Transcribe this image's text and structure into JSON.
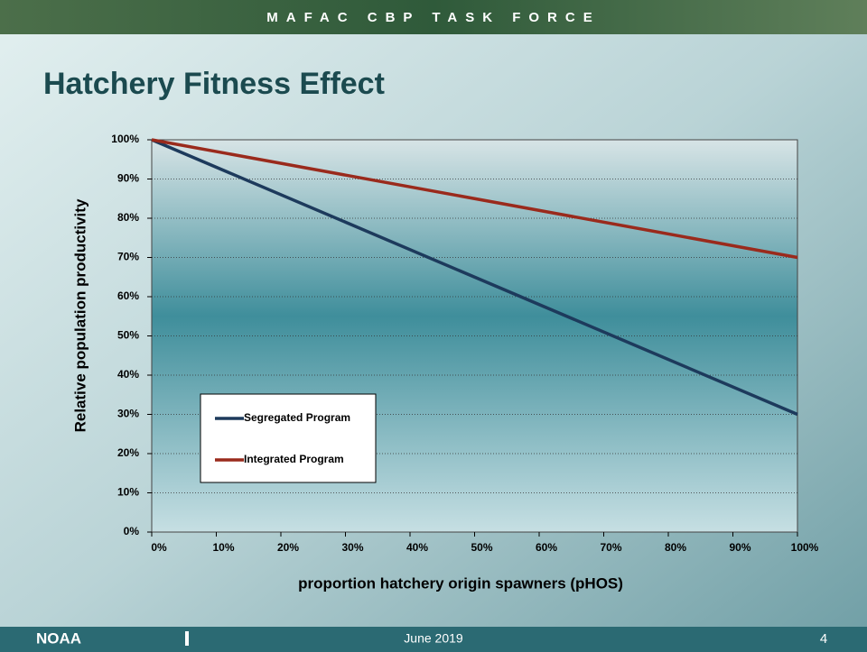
{
  "header": {
    "banner": "MAFAC CBP TASK FORCE",
    "title": "Hatchery Fitness Effect"
  },
  "footer": {
    "logo": "NOAA",
    "date": "June 2019",
    "page": "4"
  },
  "chart_data": {
    "type": "line",
    "x_label": "proportion hatchery origin spawners (pHOS)",
    "y_label": "Relative population productivity",
    "x": [
      0,
      100
    ],
    "series": [
      {
        "name": "Segregated Program",
        "color": "#1d3a5c",
        "values": [
          100,
          30
        ]
      },
      {
        "name": "Integrated Program",
        "color": "#9a2a1c",
        "values": [
          100,
          70
        ]
      }
    ],
    "xlim": [
      0,
      100
    ],
    "ylim": [
      0,
      100
    ],
    "xticks": [
      {
        "value": 0,
        "label": "0%"
      },
      {
        "value": 10,
        "label": "10%"
      },
      {
        "value": 20,
        "label": "20%"
      },
      {
        "value": 30,
        "label": "30%"
      },
      {
        "value": 40,
        "label": "40%"
      },
      {
        "value": 50,
        "label": "50%"
      },
      {
        "value": 60,
        "label": "60%"
      },
      {
        "value": 70,
        "label": "70%"
      },
      {
        "value": 80,
        "label": "80%"
      },
      {
        "value": 90,
        "label": "90%"
      },
      {
        "value": 100,
        "label": "100%"
      }
    ],
    "yticks": [
      {
        "value": 0,
        "label": "0%"
      },
      {
        "value": 10,
        "label": "10%"
      },
      {
        "value": 20,
        "label": "20%"
      },
      {
        "value": 30,
        "label": "30%"
      },
      {
        "value": 40,
        "label": "40%"
      },
      {
        "value": 50,
        "label": "50%"
      },
      {
        "value": 60,
        "label": "60%"
      },
      {
        "value": 70,
        "label": "70%"
      },
      {
        "value": 80,
        "label": "80%"
      },
      {
        "value": 90,
        "label": "90%"
      },
      {
        "value": 100,
        "label": "100%"
      }
    ],
    "grid": true,
    "legend": "lower left"
  }
}
